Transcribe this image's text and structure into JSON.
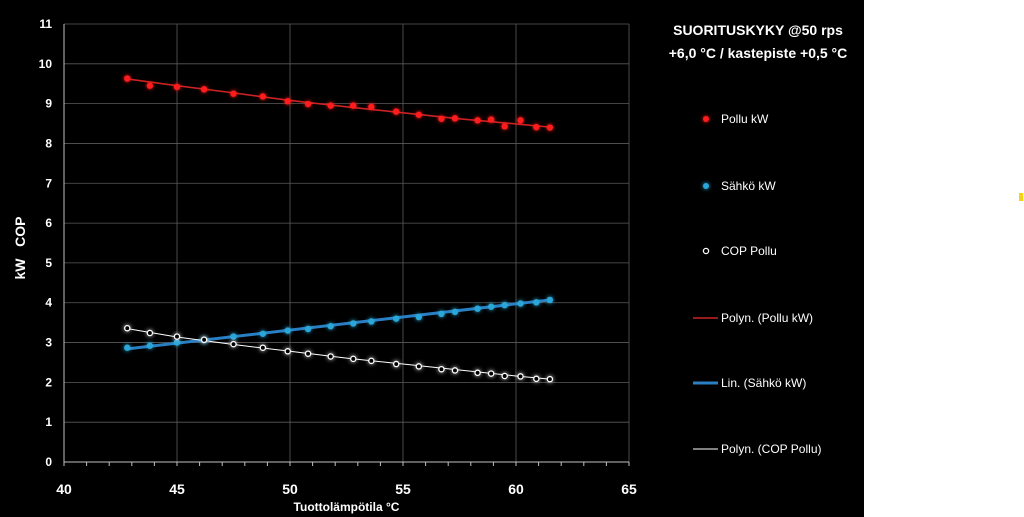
{
  "chart_data": {
    "type": "scatter",
    "title_lines": [
      "SUORITUSKYKY @50 rps",
      "+6,0 °C / kastepiste +0,5 °C"
    ],
    "xlabel": "Tuottolämpötila °C",
    "ylabel": "kW   COP",
    "xlim": [
      40,
      65
    ],
    "ylim": [
      0,
      11
    ],
    "xticks": [
      40,
      45,
      50,
      55,
      60,
      65
    ],
    "yticks": [
      0,
      1,
      2,
      3,
      4,
      5,
      6,
      7,
      8,
      9,
      10,
      11
    ],
    "grid": true,
    "legend_position": "right",
    "series": [
      {
        "name": "Pollu kW",
        "kind": "markers",
        "color": "#ff1a1a",
        "x": [
          42.8,
          43.8,
          45.0,
          46.2,
          47.5,
          48.8,
          49.9,
          50.8,
          51.8,
          52.8,
          53.6,
          54.7,
          55.7,
          56.7,
          57.3,
          58.3,
          58.9,
          59.5,
          60.2,
          60.9,
          61.5
        ],
        "y": [
          9.63,
          9.45,
          9.42,
          9.36,
          9.25,
          9.18,
          9.06,
          8.99,
          8.95,
          8.95,
          8.92,
          8.8,
          8.72,
          8.62,
          8.63,
          8.58,
          8.6,
          8.43,
          8.58,
          8.41,
          8.4
        ]
      },
      {
        "name": "Sähkö kW",
        "kind": "markers",
        "color": "#2aa7d8",
        "x": [
          42.8,
          43.8,
          45.0,
          46.2,
          47.5,
          48.8,
          49.9,
          50.8,
          51.8,
          52.8,
          53.6,
          54.7,
          55.7,
          56.7,
          57.3,
          58.3,
          58.9,
          59.5,
          60.2,
          60.9,
          61.5
        ],
        "y": [
          2.87,
          2.92,
          3.0,
          3.06,
          3.15,
          3.22,
          3.3,
          3.34,
          3.41,
          3.48,
          3.53,
          3.6,
          3.64,
          3.72,
          3.77,
          3.85,
          3.9,
          3.94,
          3.98,
          4.01,
          4.07
        ]
      },
      {
        "name": "COP Pollu",
        "kind": "markers",
        "color": "#ffffff",
        "x": [
          42.8,
          43.8,
          45.0,
          46.2,
          47.5,
          48.8,
          49.9,
          50.8,
          51.8,
          52.8,
          53.6,
          54.7,
          55.7,
          56.7,
          57.3,
          58.3,
          58.9,
          59.5,
          60.2,
          60.9,
          61.5
        ],
        "y": [
          3.36,
          3.24,
          3.15,
          3.07,
          2.96,
          2.87,
          2.78,
          2.72,
          2.65,
          2.59,
          2.54,
          2.46,
          2.4,
          2.33,
          2.3,
          2.24,
          2.22,
          2.16,
          2.15,
          2.09,
          2.08
        ]
      },
      {
        "name": "Polyn. (Pollu kW)",
        "kind": "trendline",
        "fit": "polynomial",
        "color": "#cc2222",
        "x": [
          42.8,
          45.0,
          47.5,
          50.0,
          52.5,
          55.0,
          57.5,
          60.0,
          61.5
        ],
        "y": [
          9.62,
          9.45,
          9.27,
          9.08,
          8.92,
          8.77,
          8.62,
          8.49,
          8.41
        ]
      },
      {
        "name": "Lin. (Sähkö kW)",
        "kind": "trendline",
        "fit": "linear",
        "color": "#2a7fc4",
        "x": [
          42.8,
          61.5
        ],
        "y": [
          2.84,
          4.07
        ]
      },
      {
        "name": "Polyn. (COP Pollu)",
        "kind": "trendline",
        "fit": "polynomial",
        "color": "#ffffff",
        "x": [
          42.8,
          45.0,
          47.5,
          50.0,
          52.5,
          55.0,
          57.5,
          60.0,
          61.5
        ],
        "y": [
          3.35,
          3.14,
          2.95,
          2.78,
          2.61,
          2.46,
          2.31,
          2.16,
          2.08
        ]
      }
    ]
  }
}
